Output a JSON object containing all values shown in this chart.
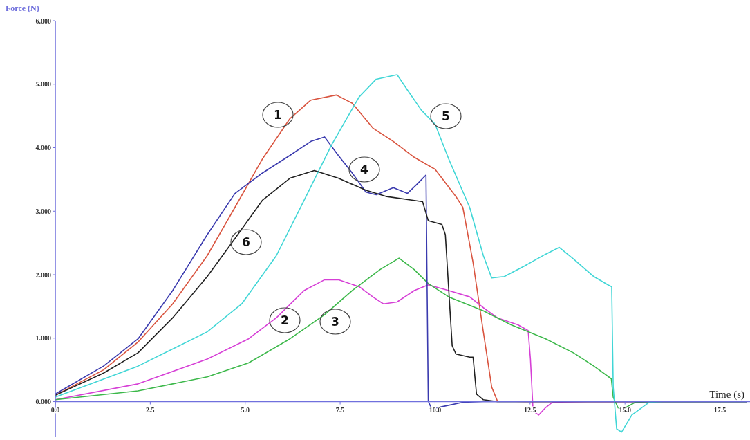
{
  "chart_data": {
    "type": "line",
    "xlabel": "Time (s)",
    "ylabel": "Force (N)",
    "xlim": [
      0,
      18.2
    ],
    "ylim": [
      -0.55,
      6
    ],
    "xticks": [
      {
        "value": 0,
        "label": "0.0"
      },
      {
        "value": 2.5,
        "label": "2.5"
      },
      {
        "value": 5,
        "label": "5.0"
      },
      {
        "value": 7.5,
        "label": "7.5"
      },
      {
        "value": 10,
        "label": "10.0"
      },
      {
        "value": 12.5,
        "label": "12.5"
      },
      {
        "value": 15,
        "label": "15.0"
      },
      {
        "value": 17.5,
        "label": "17.5"
      }
    ],
    "yticks": [
      {
        "value": 0,
        "label": "0.000"
      },
      {
        "value": 1,
        "label": "1.000"
      },
      {
        "value": 2,
        "label": "2.000"
      },
      {
        "value": 3,
        "label": "3.000"
      },
      {
        "value": 4,
        "label": "4.000"
      },
      {
        "value": 5,
        "label": "5.000"
      },
      {
        "value": 6,
        "label": "6.000"
      }
    ],
    "grid": false,
    "legend": false,
    "marker": "none",
    "line_style": "solid",
    "series": [
      {
        "name": "1",
        "color": "#d9543f",
        "x": [
          0,
          1.27,
          2.18,
          3.09,
          4,
          4.73,
          5.45,
          6.18,
          6.73,
          7.4,
          7.82,
          8.36,
          8.9,
          9.45,
          10,
          10.55,
          10.73,
          11,
          11.27,
          11.49,
          11.64,
          12.36,
          18.2
        ],
        "values": [
          0.1,
          0.5,
          0.94,
          1.54,
          2.3,
          3.06,
          3.82,
          4.46,
          4.75,
          4.83,
          4.7,
          4.31,
          4.1,
          3.85,
          3.66,
          3.23,
          3.06,
          2.19,
          1.1,
          0.23,
          0.01,
          0,
          0
        ]
      },
      {
        "name": "2",
        "color": "#d63fd6",
        "x": [
          0,
          2.18,
          4,
          5.09,
          5.82,
          6.55,
          7.09,
          7.45,
          8,
          8.36,
          8.64,
          9,
          9.45,
          9.82,
          10.36,
          10.91,
          11.27,
          11.64,
          12.18,
          12.45,
          12.51,
          12.58,
          12.73,
          12.9,
          13.09,
          14,
          18.2
        ],
        "values": [
          0.03,
          0.28,
          0.67,
          0.99,
          1.32,
          1.75,
          1.92,
          1.92,
          1.81,
          1.65,
          1.54,
          1.57,
          1.75,
          1.84,
          1.75,
          1.65,
          1.48,
          1.32,
          1.21,
          1.12,
          0.67,
          -0.15,
          -0.21,
          -0.1,
          -0.01,
          0,
          0
        ]
      },
      {
        "name": "3",
        "color": "#3cb84a",
        "x": [
          0,
          2.18,
          4,
          5.09,
          6.18,
          7.09,
          7.82,
          8.55,
          9.05,
          9.45,
          9.82,
          10.36,
          11.27,
          12,
          12.91,
          13.64,
          14.18,
          14.64,
          14.69,
          14.82,
          15,
          15.27,
          15.82,
          18.2
        ],
        "values": [
          0.03,
          0.17,
          0.39,
          0.61,
          0.99,
          1.37,
          1.75,
          2.08,
          2.26,
          2.08,
          1.86,
          1.65,
          1.43,
          1.21,
          0.99,
          0.77,
          0.56,
          0.36,
          0.07,
          -0.1,
          -0.1,
          -0.01,
          0,
          0
        ]
      },
      {
        "name": "4",
        "color": "#3a3aae",
        "x": [
          0,
          1.27,
          2.18,
          3.09,
          4,
          4.73,
          5.45,
          6.18,
          6.73,
          7.09,
          7.45,
          7.82,
          8.18,
          8.45,
          8.9,
          9.27,
          9.55,
          9.76,
          9.82,
          9.91,
          10.18,
          10.73,
          11.27,
          18.2
        ],
        "values": [
          0.12,
          0.56,
          0.99,
          1.75,
          2.63,
          3.28,
          3.6,
          3.88,
          4.1,
          4.17,
          3.88,
          3.6,
          3.3,
          3.26,
          3.37,
          3.28,
          3.44,
          3.57,
          0.01,
          -0.12,
          -0.08,
          -0.01,
          0,
          0
        ]
      },
      {
        "name": "5",
        "color": "#40d6d6",
        "x": [
          0,
          2.18,
          4,
          4.91,
          5.82,
          6.55,
          7.27,
          8,
          8.45,
          9,
          9.27,
          9.64,
          10,
          10.36,
          10.91,
          11.27,
          11.49,
          11.82,
          12.36,
          12.9,
          13.27,
          13.64,
          14.18,
          14.55,
          14.65,
          14.69,
          14.78,
          14.91,
          15.18,
          15.64,
          16,
          18.2
        ],
        "values": [
          0.07,
          0.56,
          1.1,
          1.54,
          2.3,
          3.17,
          4.04,
          4.8,
          5.08,
          5.15,
          4.91,
          4.59,
          4.37,
          3.82,
          3.06,
          2.3,
          1.95,
          1.97,
          2.14,
          2.32,
          2.43,
          2.25,
          1.97,
          1.84,
          1.81,
          0.23,
          -0.43,
          -0.48,
          -0.21,
          -0.01,
          0,
          0
        ]
      },
      {
        "name": "6",
        "color": "#202020",
        "x": [
          0,
          1.27,
          2.18,
          3.09,
          4,
          4.73,
          5.45,
          6.18,
          6.82,
          7.45,
          8.18,
          8.73,
          9.45,
          9.67,
          9.82,
          10.18,
          10.27,
          10.36,
          10.45,
          10.55,
          10.91,
          11,
          11.09,
          11.27,
          11.64,
          18.2
        ],
        "values": [
          0.1,
          0.45,
          0.77,
          1.32,
          1.97,
          2.57,
          3.17,
          3.52,
          3.64,
          3.52,
          3.33,
          3.23,
          3.17,
          3.15,
          2.85,
          2.79,
          2.63,
          1.75,
          0.88,
          0.75,
          0.7,
          0.7,
          0.12,
          0.03,
          0,
          0
        ]
      }
    ]
  }
}
